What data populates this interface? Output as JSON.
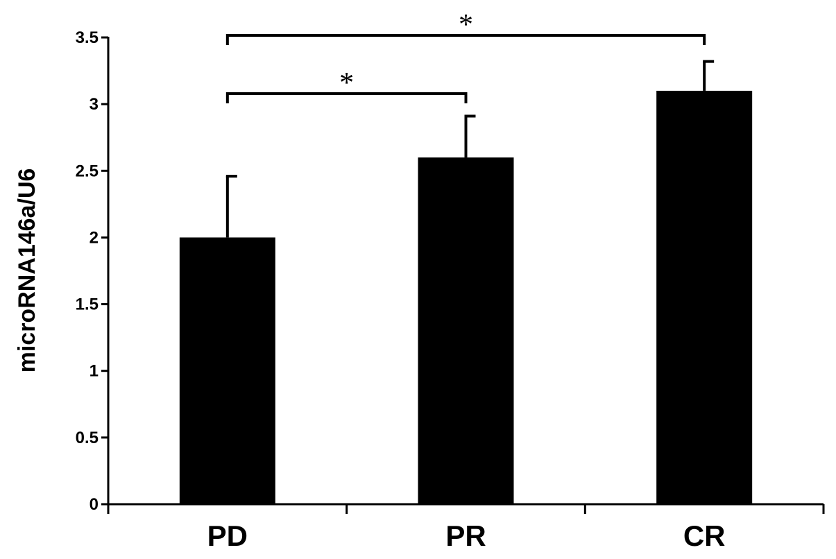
{
  "chart_data": {
    "type": "bar",
    "title": "",
    "xlabel": "",
    "ylabel": "microRNA146a/U6",
    "categories": [
      "PD",
      "PR",
      "CR"
    ],
    "values": [
      2.0,
      2.6,
      3.1
    ],
    "errors": [
      0.46,
      0.31,
      0.22
    ],
    "ylim": [
      0,
      3.5
    ],
    "yticks": [
      0,
      0.5,
      1,
      1.5,
      2,
      2.5,
      3,
      3.5
    ],
    "ytick_labels": [
      "0",
      "0.5",
      "1",
      "1.5",
      "2",
      "2.5",
      "3",
      "3.5"
    ],
    "grid": false,
    "legend": "none",
    "bar_color": "#000000",
    "significance": [
      {
        "from": "PD",
        "to": "PR",
        "label": "*"
      },
      {
        "from": "PD",
        "to": "CR",
        "label": "*"
      }
    ]
  }
}
